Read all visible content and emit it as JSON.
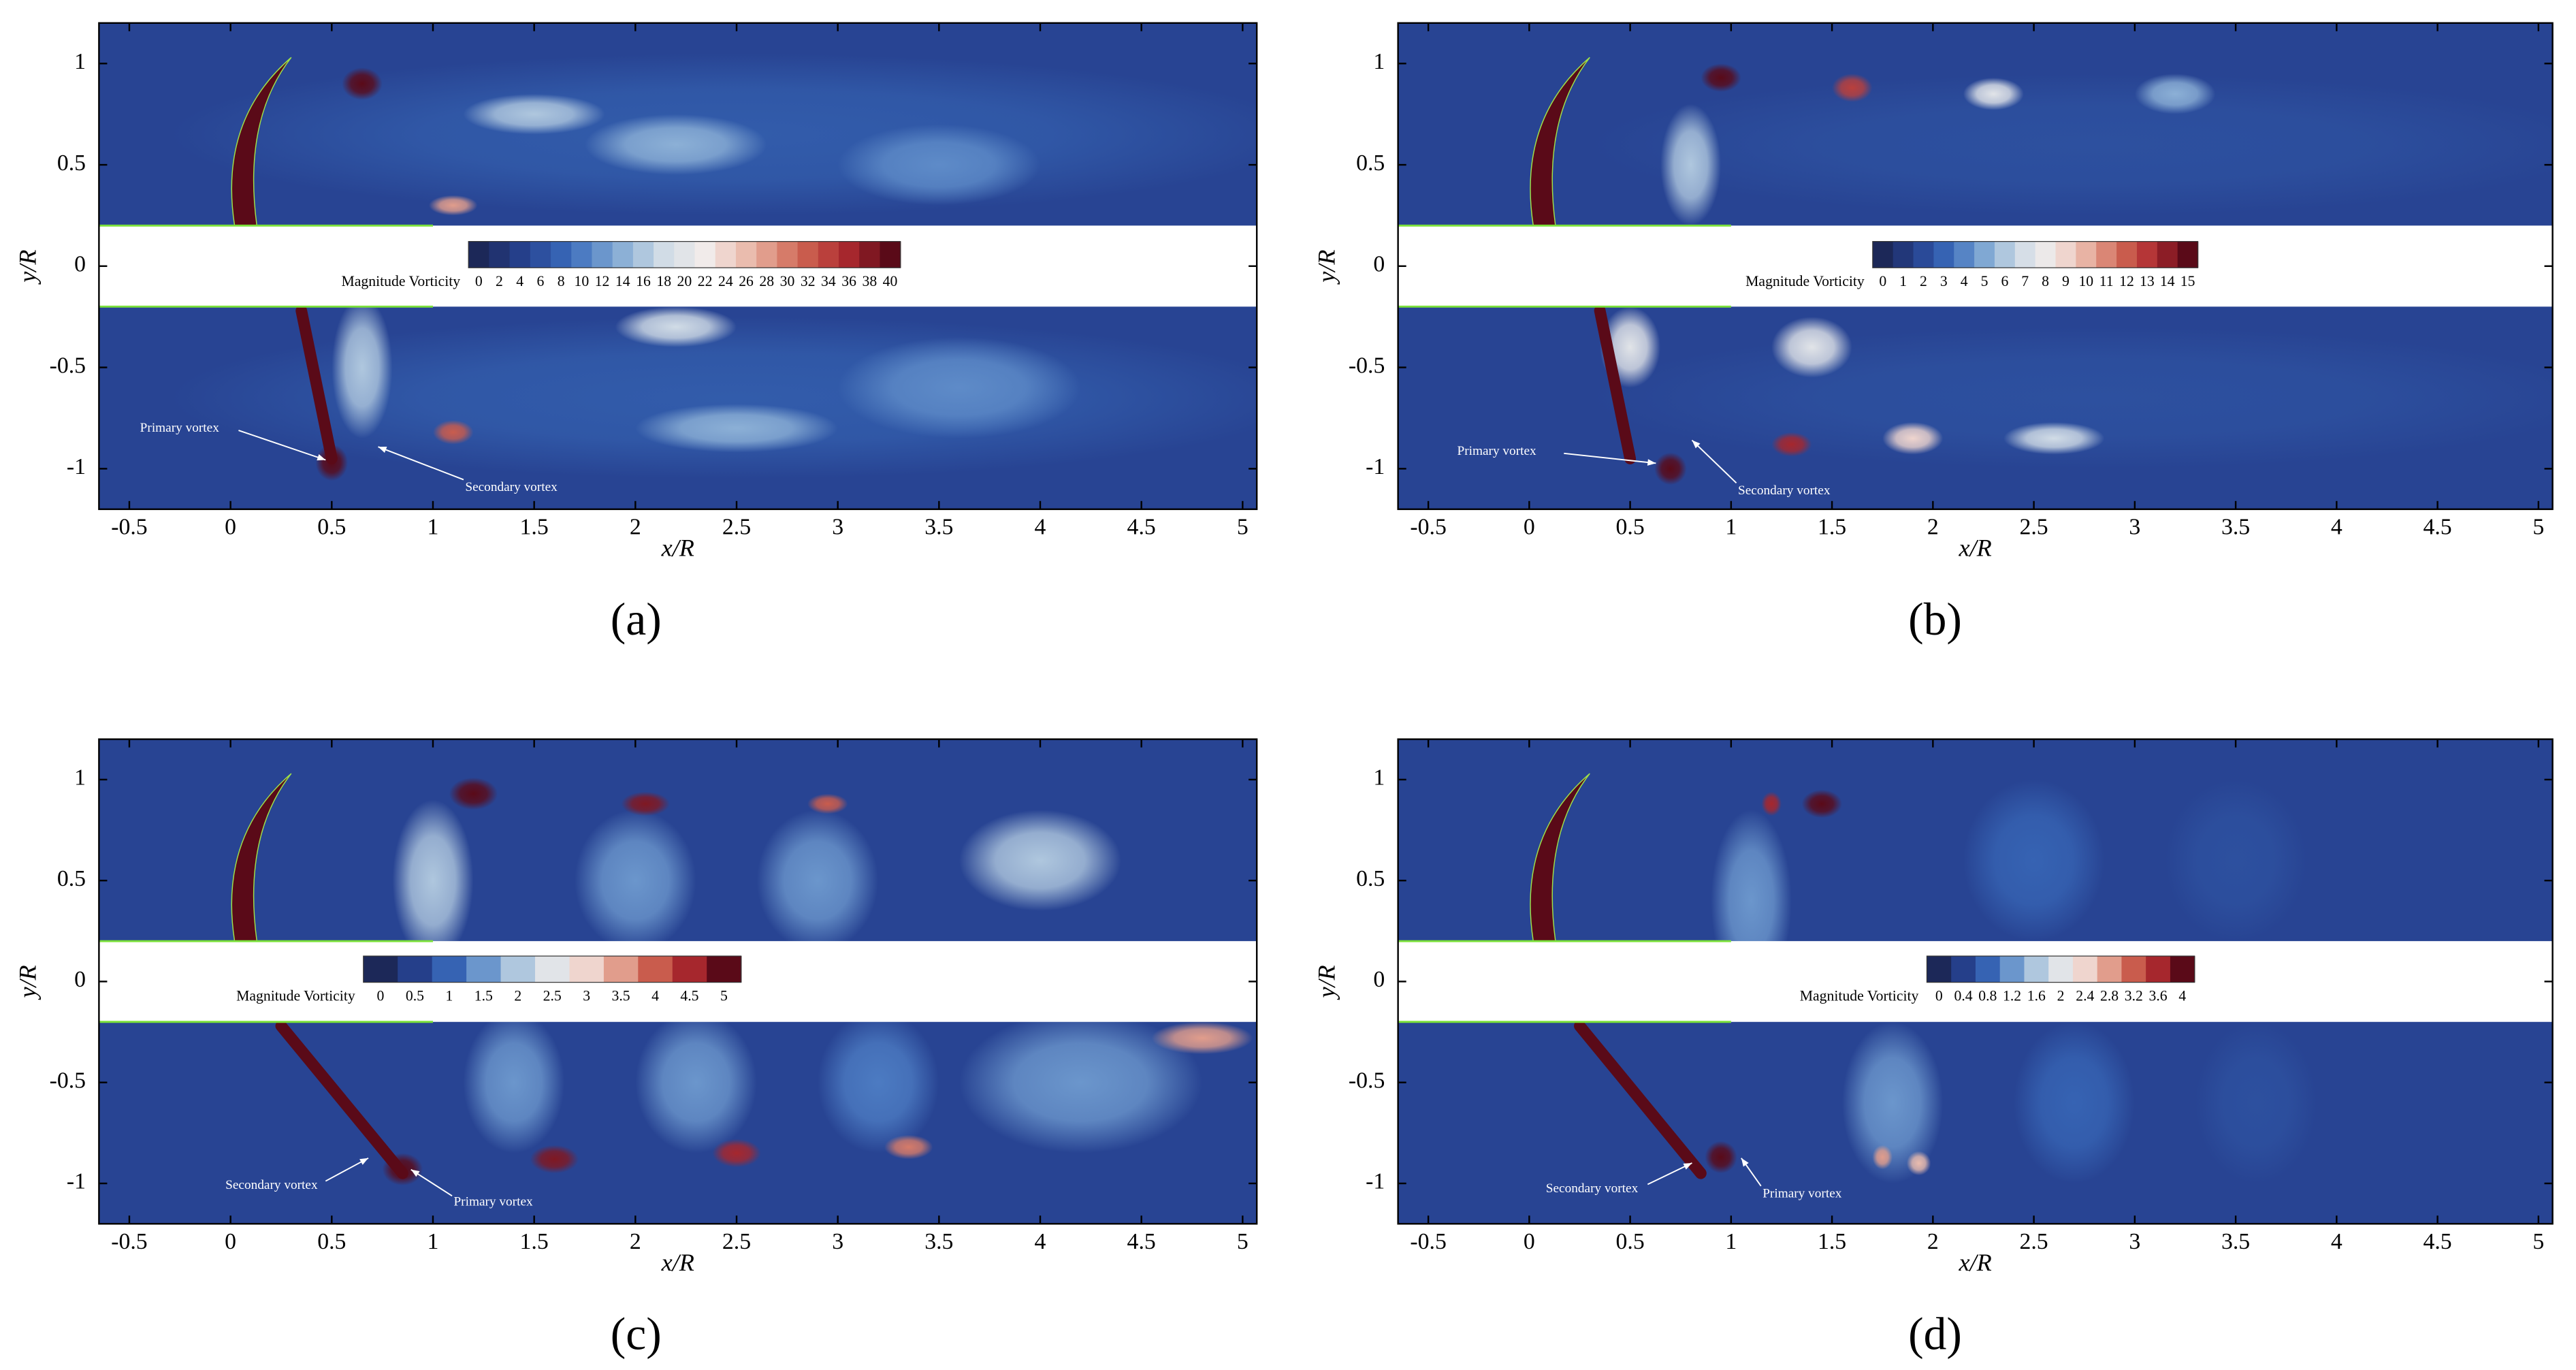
{
  "chart_data": [
    {
      "type": "contour",
      "label": "(a)",
      "xlabel": "x/R",
      "ylabel": "y/R",
      "xlim": [
        -0.65,
        5.07
      ],
      "ylim": [
        -1.2,
        1.2
      ],
      "xticks": [
        -0.5,
        0,
        0.5,
        1,
        1.5,
        2,
        2.5,
        3,
        3.5,
        4,
        4.5,
        5
      ],
      "yticks": [
        -1,
        -0.5,
        0,
        0.5,
        1
      ],
      "colorbar": {
        "label": "Magnitude Vorticity",
        "ticks": [
          0,
          2,
          4,
          6,
          8,
          10,
          12,
          14,
          16,
          18,
          20,
          22,
          24,
          26,
          28,
          30,
          32,
          34,
          36,
          38,
          40
        ]
      },
      "colormap": [
        "#1c2858",
        "#26418f",
        "#3a6cbc",
        "#80a8d3",
        "#cfdbe6",
        "#f3ecea",
        "#e8b3a4",
        "#d06855",
        "#ae2a2f",
        "#5a0a18"
      ],
      "annotations": [
        "Primary vortex",
        "Secondary vortex"
      ]
    },
    {
      "type": "contour",
      "label": "(b)",
      "xlabel": "x/R",
      "ylabel": "y/R",
      "xlim": [
        -0.65,
        5.07
      ],
      "ylim": [
        -1.2,
        1.2
      ],
      "xticks": [
        -0.5,
        0,
        0.5,
        1,
        1.5,
        2,
        2.5,
        3,
        3.5,
        4,
        4.5,
        5
      ],
      "yticks": [
        -1,
        -0.5,
        0,
        0.5,
        1
      ],
      "colorbar": {
        "label": "Magnitude Vorticity",
        "ticks": [
          0,
          1,
          2,
          3,
          4,
          5,
          6,
          7,
          8,
          9,
          10,
          11,
          12,
          13,
          14,
          15
        ]
      },
      "colormap": [
        "#1c2858",
        "#26418f",
        "#3a6cbc",
        "#80a8d3",
        "#cfdbe6",
        "#f3ecea",
        "#e8b3a4",
        "#d06855",
        "#ae2a2f",
        "#5a0a18"
      ],
      "annotations": [
        "Primary vortex",
        "Secondary vortex"
      ]
    },
    {
      "type": "contour",
      "label": "(c)",
      "xlabel": "x/R",
      "ylabel": "y/R",
      "xlim": [
        -0.65,
        5.07
      ],
      "ylim": [
        -1.2,
        1.2
      ],
      "xticks": [
        -0.5,
        0,
        0.5,
        1,
        1.5,
        2,
        2.5,
        3,
        3.5,
        4,
        4.5,
        5
      ],
      "yticks": [
        -1,
        -0.5,
        0,
        0.5,
        1
      ],
      "colorbar": {
        "label": "Magnitude Vorticity",
        "ticks": [
          0,
          0.5,
          1,
          1.5,
          2,
          2.5,
          3,
          3.5,
          4,
          4.5,
          5
        ]
      },
      "colormap": [
        "#1c2858",
        "#26418f",
        "#3a6cbc",
        "#80a8d3",
        "#cfdbe6",
        "#f3ecea",
        "#e8b3a4",
        "#d06855",
        "#ae2a2f",
        "#5a0a18"
      ],
      "annotations": [
        "Secondary vortex",
        "Primary vortex"
      ]
    },
    {
      "type": "contour",
      "label": "(d)",
      "xlabel": "x/R",
      "ylabel": "y/R",
      "xlim": [
        -0.65,
        5.07
      ],
      "ylim": [
        -1.2,
        1.2
      ],
      "xticks": [
        -0.5,
        0,
        0.5,
        1,
        1.5,
        2,
        2.5,
        3,
        3.5,
        4,
        4.5,
        5
      ],
      "yticks": [
        -1,
        -0.5,
        0,
        0.5,
        1
      ],
      "colorbar": {
        "label": "Magnitude Vorticity",
        "ticks": [
          0,
          0.4,
          0.8,
          1.2,
          1.6,
          2,
          2.4,
          2.8,
          3.2,
          3.6,
          4
        ]
      },
      "colormap": [
        "#1c2858",
        "#26418f",
        "#3a6cbc",
        "#80a8d3",
        "#cfdbe6",
        "#f3ecea",
        "#e8b3a4",
        "#d06855",
        "#ae2a2f",
        "#5a0a18"
      ],
      "annotations": [
        "Secondary vortex",
        "Primary vortex"
      ]
    }
  ]
}
